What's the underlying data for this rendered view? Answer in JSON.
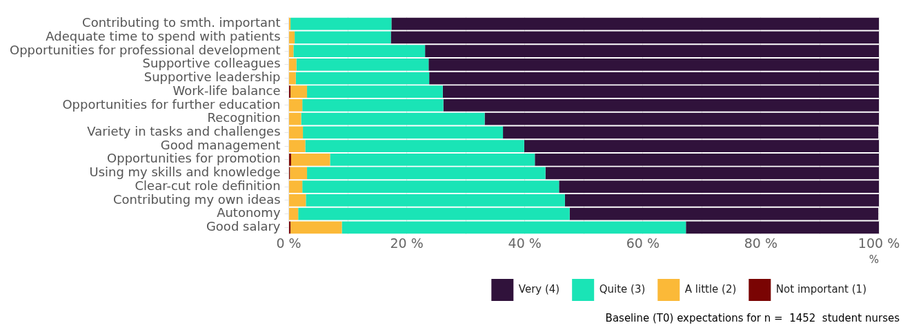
{
  "chart_data": {
    "type": "bar",
    "orientation": "horizontal",
    "stacked": true,
    "categories": [
      "Contributing to smth. important",
      "Adequate time to spend with patients",
      "Opportunities for professional development",
      "Supportive colleagues",
      "Supportive leadership",
      "Work-life balance",
      "Opportunities for further education",
      "Recognition",
      "Variety in tasks and challenges",
      "Good management",
      "Opportunities for promotion",
      "Using my skills and knowledge",
      "Clear-cut role definition",
      "Contributing my own ideas",
      "Autonomy",
      "Good salary"
    ],
    "series": [
      {
        "name": "Not important (1)",
        "color": "#7a0403",
        "values": [
          0,
          0,
          0,
          0,
          0,
          0.3,
          0,
          0,
          null,
          0,
          0.4,
          0.2,
          0,
          0,
          null,
          0.3
        ]
      },
      {
        "name": "A little (2)",
        "color": "#fbb938",
        "values": [
          0.3,
          1.0,
          0.8,
          1.3,
          1.2,
          2.8,
          2.3,
          2.1,
          2.4,
          2.8,
          6.6,
          2.9,
          2.3,
          2.9,
          1.6,
          8.7
        ]
      },
      {
        "name": "Quite (3)",
        "color": "#1ae4b6",
        "values": [
          17.1,
          16.3,
          22.3,
          22.4,
          22.6,
          23.0,
          23.9,
          31.1,
          33.9,
          37.1,
          34.7,
          40.4,
          43.5,
          43.9,
          46.0,
          58.3
        ]
      },
      {
        "name": "Very (4)",
        "color": "#30123b",
        "values": [
          82.6,
          82.7,
          76.9,
          76.3,
          76.2,
          73.9,
          73.8,
          66.8,
          63.6,
          60.1,
          58.3,
          56.5,
          54.2,
          53.2,
          52.3,
          32.7
        ]
      }
    ],
    "xlim": [
      0,
      100
    ],
    "xticks": [
      {
        "value": 0,
        "label": "0 %"
      },
      {
        "value": 10,
        "label": null
      },
      {
        "value": 20,
        "label": "20 %"
      },
      {
        "value": 30,
        "label": null
      },
      {
        "value": 40,
        "label": "40 %"
      },
      {
        "value": 50,
        "label": null
      },
      {
        "value": 60,
        "label": "60 %"
      },
      {
        "value": 70,
        "label": null
      },
      {
        "value": 80,
        "label": "80 %"
      },
      {
        "value": 90,
        "label": null
      },
      {
        "value": 100,
        "label": "100 %"
      }
    ],
    "xlabel": "%",
    "grid": true,
    "legend": "bottom right",
    "annotations": [
      "Baseline (T0) expectations for n =  1452  student nurses"
    ]
  }
}
